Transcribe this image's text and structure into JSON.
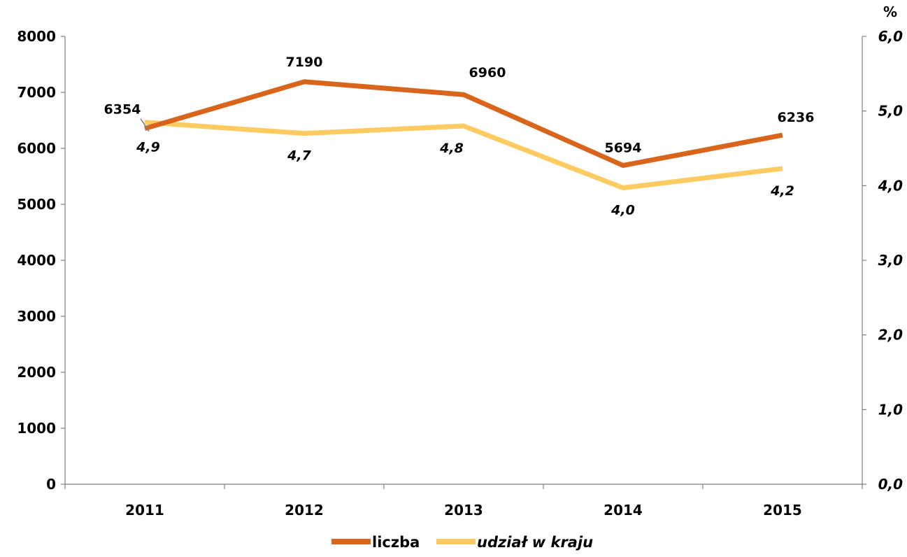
{
  "chart_data": {
    "type": "line",
    "categories": [
      "2011",
      "2012",
      "2013",
      "2014",
      "2015"
    ],
    "series": [
      {
        "name": "liczba",
        "axis": "left",
        "color": "#D9651C",
        "values": [
          6354,
          7190,
          6960,
          5694,
          6236
        ],
        "labels": [
          "6354",
          "7190",
          "6960",
          "5694",
          "6236"
        ]
      },
      {
        "name": "udział w kraju",
        "axis": "right",
        "color": "#FDCB62",
        "values": [
          4.85,
          4.7,
          4.8,
          3.97,
          4.23
        ],
        "labels": [
          "4,9",
          "4,7",
          "4,8",
          "4,0",
          "4,2"
        ]
      }
    ],
    "y_left": {
      "range": [
        0,
        8000
      ],
      "ticks": [
        "0",
        "1000",
        "2000",
        "3000",
        "4000",
        "5000",
        "6000",
        "7000",
        "8000"
      ]
    },
    "y_right": {
      "range": [
        0,
        6
      ],
      "ticks": [
        "0,0",
        "1,0",
        "2,0",
        "3,0",
        "4,0",
        "5,0",
        "6,0"
      ],
      "unit": "%"
    },
    "grid": false,
    "legend": "bottom-center"
  }
}
